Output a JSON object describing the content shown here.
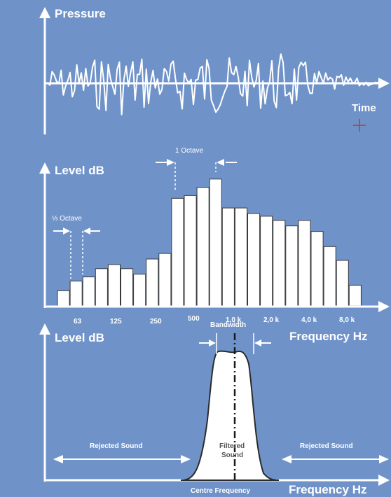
{
  "top": {
    "ylabel": "Pressure",
    "xlabel": "Time"
  },
  "middle": {
    "ylabel": "Level dB",
    "octave_label": "1 Octave",
    "third_octave_label": "⅓ Octave",
    "xlabel": "Frequency Hz",
    "ticks": [
      "63",
      "125",
      "250",
      "500",
      "1,0 k",
      "2,0 k",
      "4,0 k",
      "8,0 k"
    ]
  },
  "bottom": {
    "ylabel": "Level dB",
    "bandwidth_label": "Bandwidth",
    "filtered_label": [
      "Filtered",
      "Sound"
    ],
    "rejected_left": "Rejected Sound",
    "rejected_right": "Rejected Sound",
    "centre_label": "Centre Frequency",
    "xlabel": "Frequency Hz"
  },
  "colors": {
    "background": "#6f93c9",
    "ink": "#ffffff",
    "marker": "#c0392b"
  },
  "chart_data": {
    "type": "bar",
    "title": "",
    "ylabel": "Level dB",
    "xlabel": "Frequency Hz",
    "values": [
      11,
      18,
      21,
      27,
      30,
      27,
      23,
      34,
      38,
      78,
      80,
      86,
      92,
      71,
      71,
      67,
      65,
      62,
      58,
      62,
      54,
      43,
      33,
      15
    ],
    "ylim": [
      0,
      100
    ]
  }
}
